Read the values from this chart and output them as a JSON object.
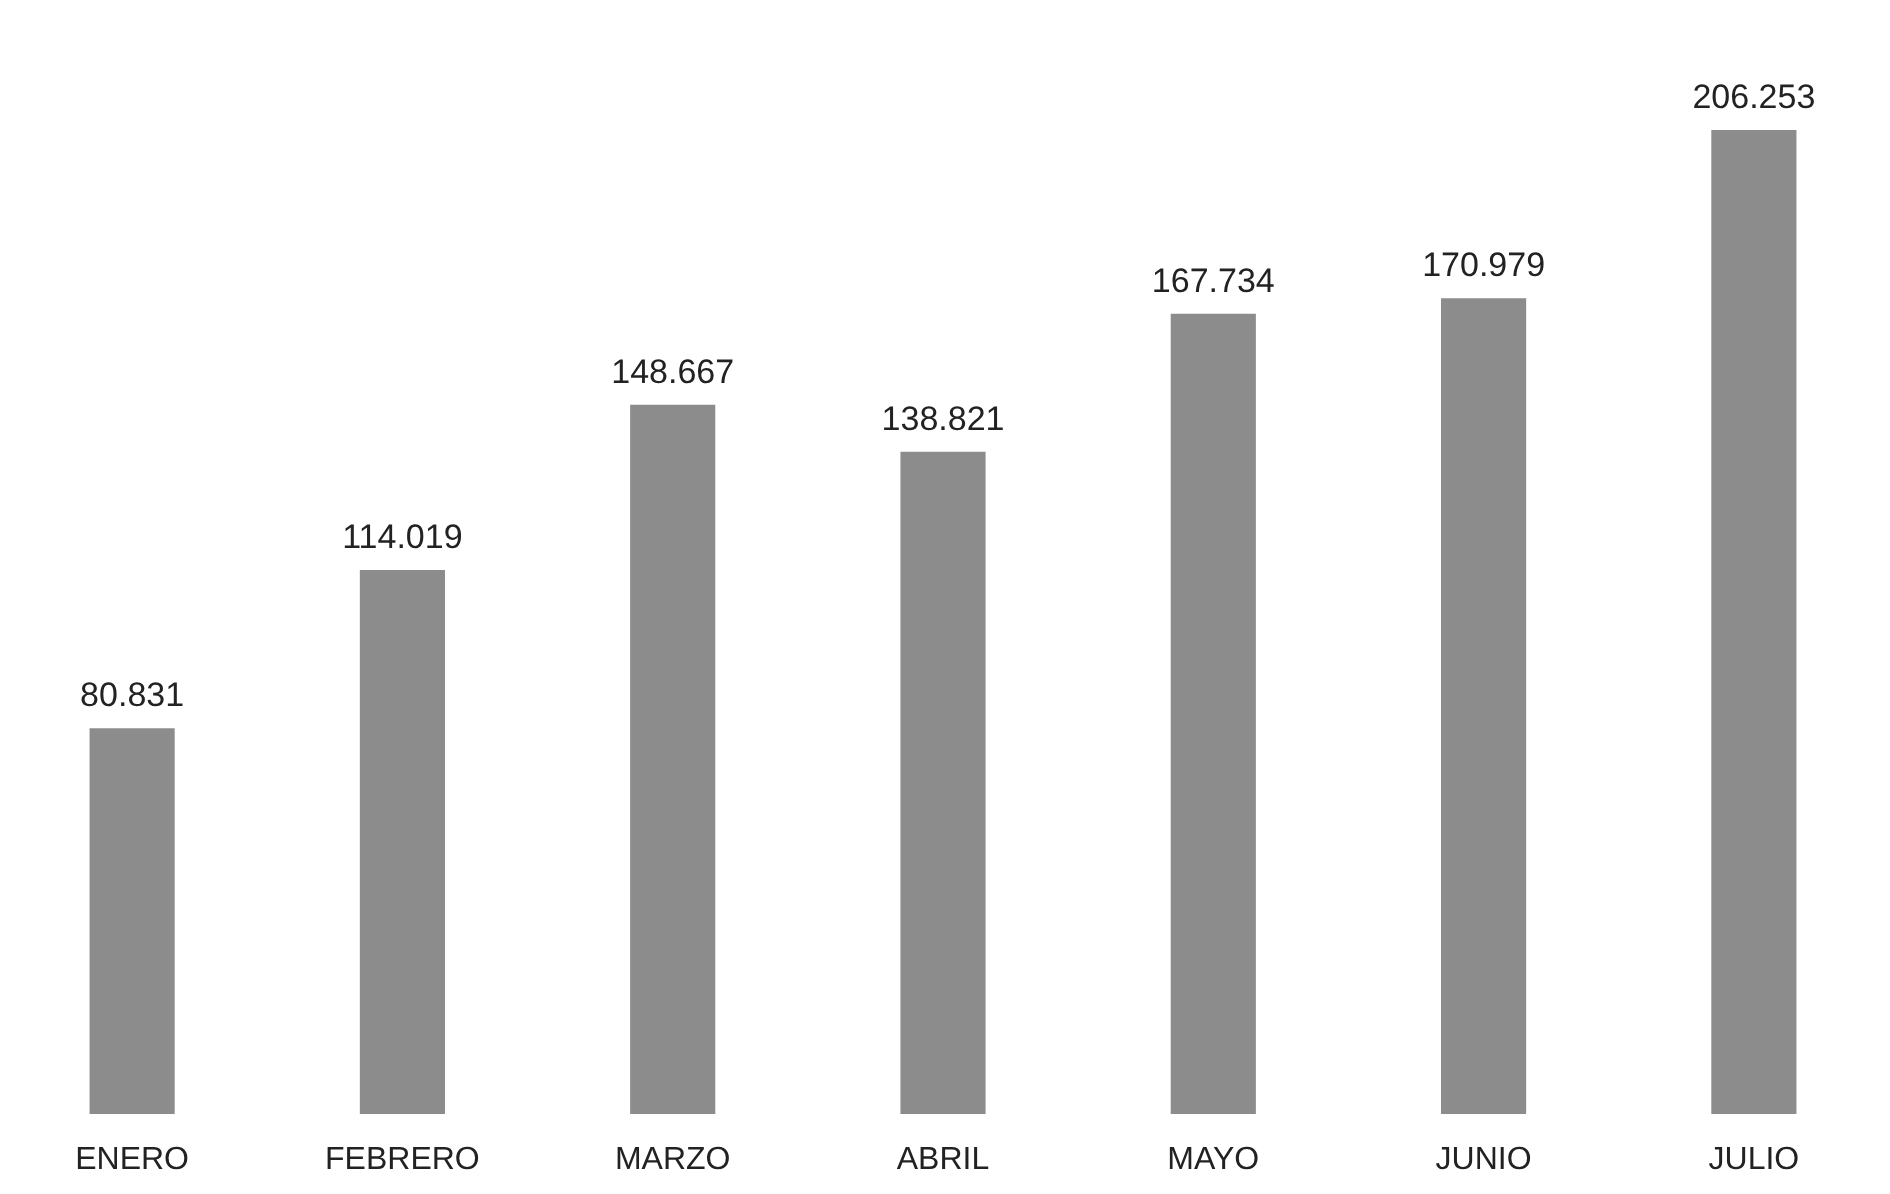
{
  "chart_data": {
    "type": "bar",
    "categories": [
      "ENERO",
      "FEBRERO",
      "MARZO",
      "ABRIL",
      "MAYO",
      "JUNIO",
      "JULIO"
    ],
    "values": [
      80831,
      114019,
      148667,
      138821,
      167734,
      170979,
      206253
    ],
    "value_labels": [
      "80.831",
      "114.019",
      "148.667",
      "138.821",
      "167.734",
      "170.979",
      "206.253"
    ],
    "color": "#8c8c8c",
    "grid": false
  }
}
